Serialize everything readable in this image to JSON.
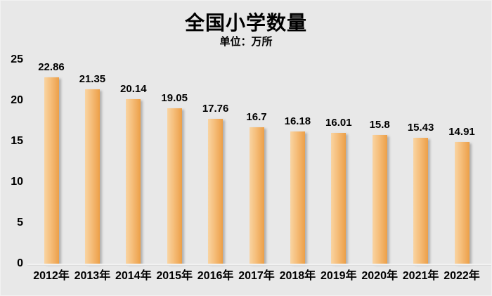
{
  "title": "全国小学数量",
  "subtitle": "单位：万所",
  "chart_data": {
    "type": "bar",
    "title": "全国小学数量",
    "subtitle": "单位：万所",
    "categories": [
      "2012年",
      "2013年",
      "2014年",
      "2015年",
      "2016年",
      "2017年",
      "2018年",
      "2019年",
      "2020年",
      "2021年",
      "2022年"
    ],
    "values": [
      22.86,
      21.35,
      20.14,
      19.05,
      17.76,
      16.7,
      16.18,
      16.01,
      15.8,
      15.43,
      14.91
    ],
    "value_labels": [
      "22.86",
      "21.35",
      "20.14",
      "19.05",
      "17.76",
      "16.7",
      "16.18",
      "16.01",
      "15.8",
      "15.43",
      "14.91"
    ],
    "xlabel": "",
    "ylabel": "",
    "ylim": [
      0,
      25
    ],
    "yticks": [
      0,
      5,
      10,
      15,
      20,
      25
    ],
    "grid": false,
    "legend": "none",
    "colors": {
      "background": "#e8e8e8",
      "bar_gradient_left": "#f9d4a2",
      "bar_gradient_mid": "#f5bd79",
      "bar_gradient_right": "#ec9f48",
      "text": "#000000",
      "axis_line": "#cdcdcd"
    }
  }
}
